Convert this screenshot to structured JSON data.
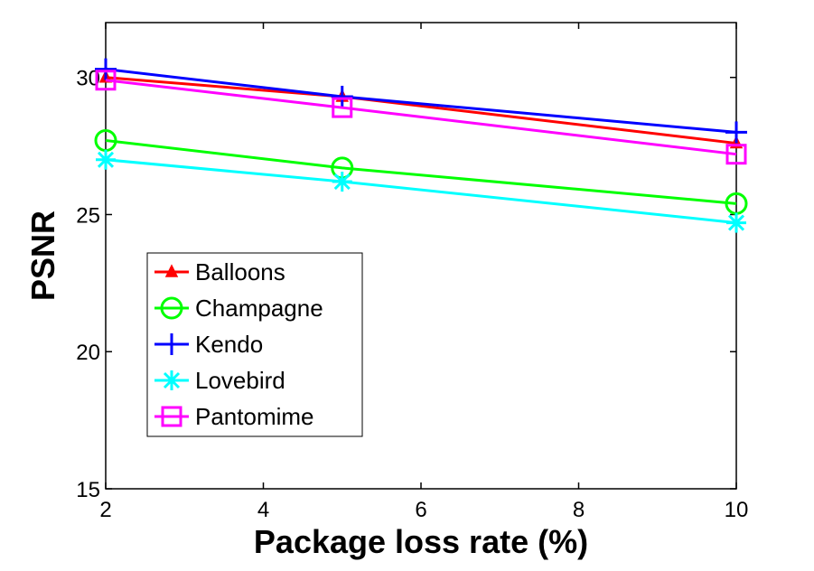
{
  "chart_data": {
    "type": "line",
    "title": "",
    "xlabel": "Package loss rate (%)",
    "ylabel": "PSNR",
    "xlim": [
      2,
      10
    ],
    "ylim": [
      15,
      32
    ],
    "xticks": [
      2,
      4,
      6,
      8,
      10
    ],
    "yticks": [
      15,
      20,
      25,
      30
    ],
    "grid": false,
    "legend_position": "lower-left",
    "x": [
      2,
      5,
      10
    ],
    "series": [
      {
        "name": "Balloons",
        "values": [
          30.0,
          29.3,
          27.6
        ],
        "color": "#ff0000",
        "marker": "triangle"
      },
      {
        "name": "Champagne",
        "values": [
          27.7,
          26.7,
          25.4
        ],
        "color": "#00ff00",
        "marker": "circle"
      },
      {
        "name": "Kendo",
        "values": [
          30.3,
          29.3,
          28.0
        ],
        "color": "#0000ff",
        "marker": "plus"
      },
      {
        "name": "Lovebird",
        "values": [
          27.0,
          26.2,
          24.7
        ],
        "color": "#00ffff",
        "marker": "asterisk"
      },
      {
        "name": "Pantomime",
        "values": [
          29.9,
          28.9,
          27.2
        ],
        "color": "#ff00ff",
        "marker": "square"
      }
    ]
  }
}
